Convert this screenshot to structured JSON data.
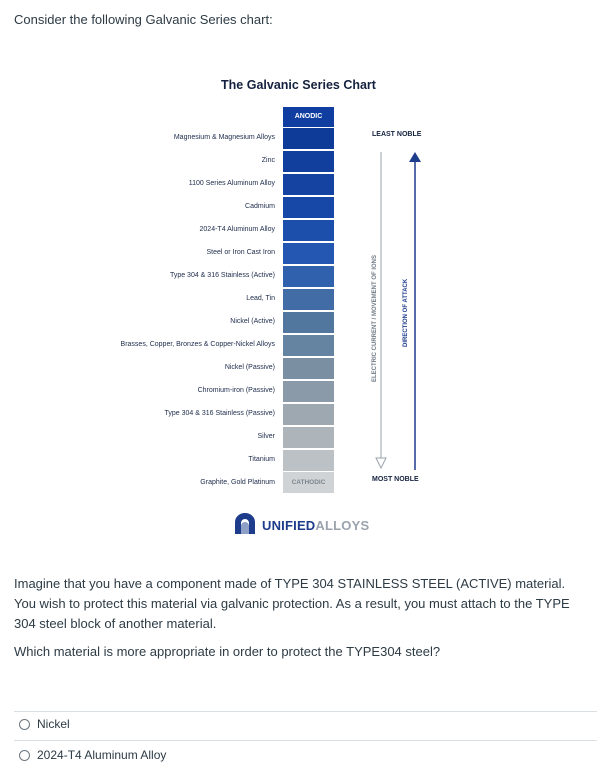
{
  "intro": "Consider the following Galvanic Series chart:",
  "chart": {
    "title": "The Galvanic Series Chart",
    "anodic_label": "ANODIC",
    "cathodic_label": "CATHODIC",
    "least_noble": "LEAST NOBLE",
    "most_noble": "MOST NOBLE",
    "electric_current": "ELECTRIC CURRENT / MOVEMENT OF IONS",
    "direction_of_attack": "DIRECTION OF ATTACK",
    "materials": [
      {
        "label": "Magnesium & Magnesium Alloys",
        "color": "#0f3b98"
      },
      {
        "label": "Zinc",
        "color": "#113f9d"
      },
      {
        "label": "1100 Series Aluminum Alloy",
        "color": "#1443a2"
      },
      {
        "label": "Cadmium",
        "color": "#1748a7"
      },
      {
        "label": "2024-T4 Aluminum Alloy",
        "color": "#1c4eac"
      },
      {
        "label": "Steel or Iron Cast Iron",
        "color": "#2357b1"
      },
      {
        "label": "Type 304 & 316 Stainless (Active)",
        "color": "#3061ad"
      },
      {
        "label": "Lead, Tin",
        "color": "#416ca6"
      },
      {
        "label": "Nickel (Active)",
        "color": "#52779f"
      },
      {
        "label": "Brasses, Copper, Bronzes & Copper-Nickel Alloys",
        "color": "#6584a1"
      },
      {
        "label": "Nickel (Passive)",
        "color": "#7a8fa2"
      },
      {
        "label": "Chromium-iron (Passive)",
        "color": "#8b9aa8"
      },
      {
        "label": "Type 304 & 316 Stainless (Passive)",
        "color": "#9da8b1"
      },
      {
        "label": "Silver",
        "color": "#adb4ba"
      },
      {
        "label": "Titanium",
        "color": "#bcc1c6"
      },
      {
        "label": "Graphite, Gold Platinum",
        "color": "#cfd3d6"
      }
    ],
    "logo": {
      "part1": "UNIFIED",
      "part2": "ALLOYS",
      "color": "#1e3c8c"
    }
  },
  "question": {
    "paragraph": "Imagine that you have a component made of TYPE 304 STAINLESS STEEL (ACTIVE) material. You wish to protect this material via galvanic protection. As a result, you must attach to the TYPE 304 steel block of another material.",
    "prompt": "Which material is more appropriate in order to protect the TYPE304 steel?",
    "options": [
      "Nickel",
      "2024-T4 Aluminum Alloy"
    ]
  }
}
